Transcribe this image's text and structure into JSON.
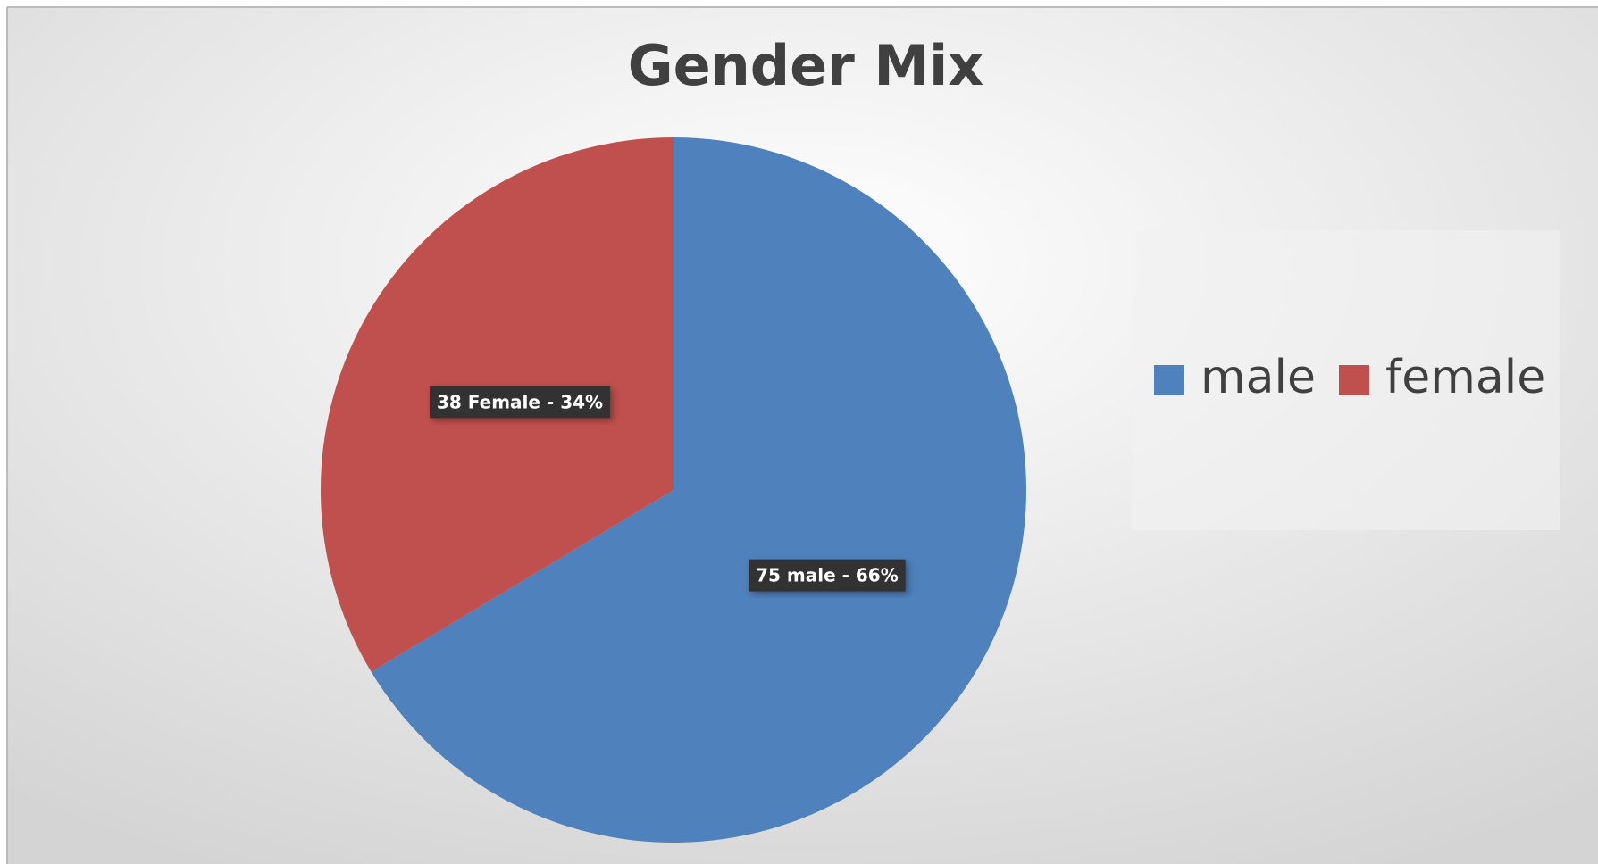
{
  "chart_data": {
    "type": "pie",
    "title": "Gender Mix",
    "categories": [
      "male",
      "female"
    ],
    "values": [
      75,
      38
    ],
    "value_labels": [
      "75 male - 66%",
      "38 Female - 34%"
    ],
    "colors": [
      "#4f81bd",
      "#c0504d"
    ],
    "legend": "right"
  }
}
